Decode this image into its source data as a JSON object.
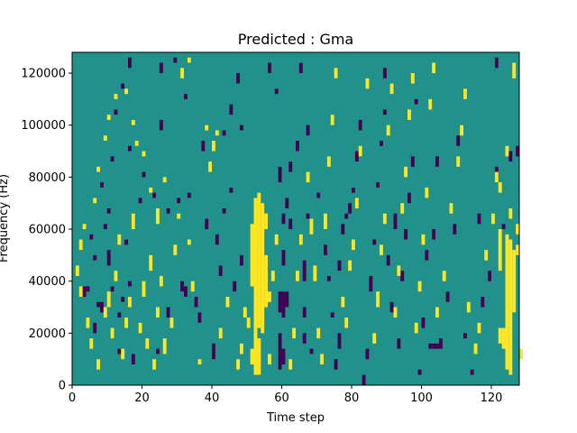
{
  "colors": {
    "background": "#21918c",
    "high": "#fde725",
    "low": "#440154"
  },
  "chart_data": {
    "type": "heatmap",
    "title": "Predicted : Gma",
    "xlabel": "Time step",
    "ylabel": "Frequency (Hz)",
    "xlim": [
      0,
      128
    ],
    "ylim": [
      0,
      128000
    ],
    "x_ticks": [
      0,
      20,
      40,
      60,
      80,
      100,
      120
    ],
    "y_ticks": [
      0,
      20000,
      40000,
      60000,
      80000,
      100000,
      120000
    ],
    "y_tick_labels": [
      "0",
      "20000",
      "40000",
      "60000",
      "80000",
      "100000",
      "120000"
    ],
    "bin_hz": 2000,
    "cells": [
      [
        53,
        4000,
        18000,
        1
      ],
      [
        51,
        8000,
        14000,
        1
      ],
      [
        52,
        4000,
        72000,
        1
      ],
      [
        53,
        22000,
        74000,
        1
      ],
      [
        54,
        20000,
        70000,
        1
      ],
      [
        55,
        30000,
        50000,
        1
      ],
      [
        50,
        22000,
        26000,
        1
      ],
      [
        51,
        38000,
        62000,
        1
      ],
      [
        56,
        8000,
        12000,
        1
      ],
      [
        55,
        60000,
        66000,
        1
      ],
      [
        124,
        6000,
        58000,
        1
      ],
      [
        125,
        4000,
        56000,
        1
      ],
      [
        126,
        28000,
        52000,
        1
      ],
      [
        123,
        14000,
        22000,
        1
      ],
      [
        122,
        44000,
        60000,
        1
      ],
      [
        122,
        16000,
        22000,
        1
      ],
      [
        126,
        118000,
        124000,
        1
      ],
      [
        124,
        88000,
        92000,
        1
      ],
      [
        127,
        58000,
        62000,
        1
      ],
      [
        60,
        62000,
        66000,
        0
      ],
      [
        60,
        46000,
        52000,
        0
      ],
      [
        59,
        28000,
        36000,
        0
      ],
      [
        60,
        26000,
        36000,
        0
      ],
      [
        61,
        30000,
        36000,
        0
      ],
      [
        59,
        6000,
        20000,
        0
      ],
      [
        60,
        8000,
        14000,
        0
      ],
      [
        59,
        78000,
        84000,
        0
      ],
      [
        61,
        68000,
        72000,
        0
      ],
      [
        62,
        60000,
        64000,
        0
      ],
      [
        66,
        26000,
        30000,
        0
      ],
      [
        66,
        16000,
        20000,
        0
      ],
      [
        66,
        40000,
        48000,
        0
      ],
      [
        67,
        64000,
        66000,
        0
      ],
      [
        68,
        12000,
        14000,
        0
      ],
      [
        35,
        30000,
        34000,
        0
      ],
      [
        36,
        24000,
        28000,
        0
      ],
      [
        40,
        10000,
        16000,
        0
      ],
      [
        41,
        54000,
        58000,
        0
      ],
      [
        43,
        66000,
        68000,
        0
      ],
      [
        45,
        74000,
        76000,
        0
      ],
      [
        43,
        96000,
        98000,
        0
      ],
      [
        45,
        104000,
        108000,
        0
      ],
      [
        48,
        98000,
        100000,
        0
      ],
      [
        32,
        34000,
        38000,
        0
      ],
      [
        33,
        72000,
        74000,
        0
      ],
      [
        7,
        30000,
        32000,
        0
      ],
      [
        6,
        48000,
        50000,
        0
      ],
      [
        11,
        36000,
        38000,
        0
      ],
      [
        10,
        46000,
        52000,
        0
      ],
      [
        13,
        26000,
        28000,
        0
      ],
      [
        9,
        60000,
        62000,
        0
      ],
      [
        8,
        76000,
        78000,
        0
      ],
      [
        5,
        56000,
        58000,
        0
      ],
      [
        3,
        34000,
        38000,
        0
      ],
      [
        4,
        36000,
        38000,
        0
      ],
      [
        6,
        20000,
        24000,
        0
      ],
      [
        8,
        28000,
        32000,
        0
      ],
      [
        12,
        104000,
        106000,
        0
      ],
      [
        16,
        90000,
        92000,
        0
      ],
      [
        14,
        114000,
        116000,
        0
      ],
      [
        16,
        122000,
        126000,
        0
      ],
      [
        20,
        80000,
        82000,
        0
      ],
      [
        23,
        72000,
        74000,
        0
      ],
      [
        25,
        98000,
        102000,
        0
      ],
      [
        27,
        26000,
        30000,
        0
      ],
      [
        27,
        66000,
        68000,
        0
      ],
      [
        30,
        70000,
        72000,
        0
      ],
      [
        31,
        36000,
        40000,
        0
      ],
      [
        24,
        12000,
        14000,
        0
      ],
      [
        19,
        70000,
        72000,
        0
      ],
      [
        17,
        8000,
        12000,
        0
      ],
      [
        16,
        38000,
        40000,
        0
      ],
      [
        15,
        54000,
        56000,
        0
      ],
      [
        13,
        12000,
        14000,
        0
      ],
      [
        14,
        32000,
        34000,
        0
      ],
      [
        11,
        86000,
        88000,
        0
      ],
      [
        10,
        66000,
        68000,
        0
      ],
      [
        25,
        120000,
        124000,
        0
      ],
      [
        29,
        124000,
        126000,
        0
      ],
      [
        32,
        110000,
        112000,
        0
      ],
      [
        37,
        90000,
        94000,
        0
      ],
      [
        38,
        60000,
        64000,
        0
      ],
      [
        42,
        42000,
        46000,
        0
      ],
      [
        46,
        36000,
        40000,
        0
      ],
      [
        48,
        46000,
        50000,
        0
      ],
      [
        47,
        116000,
        120000,
        0
      ],
      [
        56,
        120000,
        124000,
        0
      ],
      [
        58,
        112000,
        114000,
        0
      ],
      [
        62,
        82000,
        86000,
        0
      ],
      [
        64,
        90000,
        94000,
        0
      ],
      [
        65,
        120000,
        124000,
        0
      ],
      [
        67,
        96000,
        100000,
        0
      ],
      [
        70,
        72000,
        74000,
        0
      ],
      [
        72,
        50000,
        54000,
        0
      ],
      [
        73,
        40000,
        42000,
        0
      ],
      [
        74,
        26000,
        28000,
        0
      ],
      [
        75,
        6000,
        10000,
        0
      ],
      [
        76,
        14000,
        20000,
        0
      ],
      [
        76,
        44000,
        48000,
        0
      ],
      [
        77,
        58000,
        62000,
        0
      ],
      [
        78,
        64000,
        66000,
        0
      ],
      [
        79,
        66000,
        70000,
        0
      ],
      [
        80,
        74000,
        76000,
        0
      ],
      [
        81,
        86000,
        90000,
        0
      ],
      [
        82,
        98000,
        102000,
        0
      ],
      [
        83,
        0,
        4000,
        0
      ],
      [
        84,
        10000,
        14000,
        0
      ],
      [
        85,
        36000,
        42000,
        0
      ],
      [
        86,
        54000,
        56000,
        0
      ],
      [
        87,
        76000,
        78000,
        0
      ],
      [
        88,
        92000,
        94000,
        0
      ],
      [
        89,
        104000,
        106000,
        0
      ],
      [
        89,
        118000,
        122000,
        0
      ],
      [
        90,
        46000,
        50000,
        0
      ],
      [
        91,
        28000,
        32000,
        0
      ],
      [
        92,
        60000,
        66000,
        0
      ],
      [
        93,
        14000,
        18000,
        0
      ],
      [
        94,
        40000,
        44000,
        0
      ],
      [
        95,
        56000,
        60000,
        0
      ],
      [
        96,
        70000,
        74000,
        0
      ],
      [
        97,
        84000,
        88000,
        0
      ],
      [
        98,
        108000,
        110000,
        0
      ],
      [
        99,
        4000,
        6000,
        0
      ],
      [
        100,
        22000,
        26000,
        0
      ],
      [
        101,
        48000,
        52000,
        0
      ],
      [
        103,
        56000,
        60000,
        0
      ],
      [
        104,
        84000,
        88000,
        0
      ],
      [
        105,
        14000,
        18000,
        0
      ],
      [
        107,
        32000,
        36000,
        0
      ],
      [
        109,
        58000,
        62000,
        0
      ],
      [
        110,
        92000,
        96000,
        0
      ],
      [
        112,
        18000,
        20000,
        0
      ],
      [
        114,
        4000,
        6000,
        0
      ],
      [
        116,
        62000,
        66000,
        0
      ],
      [
        117,
        30000,
        34000,
        0
      ],
      [
        119,
        40000,
        44000,
        0
      ],
      [
        121,
        80000,
        84000,
        0
      ],
      [
        123,
        60000,
        62000,
        0
      ],
      [
        125,
        86000,
        90000,
        0
      ],
      [
        127,
        88000,
        92000,
        0
      ],
      [
        121,
        122000,
        126000,
        0
      ],
      [
        102,
        14000,
        16000,
        0
      ],
      [
        103,
        14000,
        16000,
        0
      ],
      [
        104,
        14000,
        16000,
        0
      ],
      [
        105,
        14000,
        16000,
        0
      ],
      [
        40,
        90000,
        94000,
        1
      ],
      [
        41,
        96000,
        98000,
        1
      ],
      [
        39,
        82000,
        86000,
        1
      ],
      [
        38,
        98000,
        100000,
        1
      ],
      [
        36,
        8000,
        10000,
        1
      ],
      [
        34,
        36000,
        40000,
        1
      ],
      [
        33,
        54000,
        56000,
        1
      ],
      [
        30,
        64000,
        66000,
        1
      ],
      [
        26,
        78000,
        80000,
        1
      ],
      [
        24,
        62000,
        68000,
        1
      ],
      [
        22,
        74000,
        76000,
        1
      ],
      [
        20,
        88000,
        90000,
        1
      ],
      [
        18,
        92000,
        94000,
        1
      ],
      [
        17,
        100000,
        102000,
        1
      ],
      [
        15,
        112000,
        114000,
        1
      ],
      [
        12,
        110000,
        112000,
        1
      ],
      [
        10,
        102000,
        104000,
        1
      ],
      [
        9,
        94000,
        96000,
        1
      ],
      [
        7,
        82000,
        84000,
        1
      ],
      [
        6,
        70000,
        72000,
        1
      ],
      [
        3,
        60000,
        62000,
        1
      ],
      [
        2,
        52000,
        56000,
        1
      ],
      [
        1,
        42000,
        46000,
        1
      ],
      [
        2,
        34000,
        38000,
        1
      ],
      [
        4,
        22000,
        26000,
        1
      ],
      [
        5,
        14000,
        18000,
        1
      ],
      [
        7,
        6000,
        10000,
        1
      ],
      [
        9,
        26000,
        30000,
        1
      ],
      [
        10,
        30000,
        36000,
        1
      ],
      [
        11,
        18000,
        22000,
        1
      ],
      [
        12,
        40000,
        44000,
        1
      ],
      [
        13,
        54000,
        58000,
        1
      ],
      [
        14,
        10000,
        14000,
        1
      ],
      [
        15,
        22000,
        26000,
        1
      ],
      [
        16,
        30000,
        34000,
        1
      ],
      [
        17,
        60000,
        66000,
        1
      ],
      [
        19,
        20000,
        24000,
        1
      ],
      [
        20,
        34000,
        40000,
        1
      ],
      [
        21,
        14000,
        18000,
        1
      ],
      [
        22,
        44000,
        50000,
        1
      ],
      [
        23,
        6000,
        10000,
        1
      ],
      [
        24,
        26000,
        30000,
        1
      ],
      [
        25,
        38000,
        42000,
        1
      ],
      [
        26,
        12000,
        18000,
        1
      ],
      [
        28,
        22000,
        26000,
        1
      ],
      [
        29,
        50000,
        54000,
        1
      ],
      [
        31,
        118000,
        122000,
        1
      ],
      [
        33,
        124000,
        126000,
        1
      ],
      [
        42,
        18000,
        22000,
        1
      ],
      [
        44,
        30000,
        34000,
        1
      ],
      [
        47,
        6000,
        10000,
        1
      ],
      [
        48,
        12000,
        16000,
        1
      ],
      [
        49,
        26000,
        30000,
        1
      ],
      [
        56,
        32000,
        36000,
        1
      ],
      [
        57,
        40000,
        44000,
        1
      ],
      [
        58,
        54000,
        58000,
        1
      ],
      [
        62,
        6000,
        10000,
        1
      ],
      [
        63,
        18000,
        22000,
        1
      ],
      [
        64,
        40000,
        44000,
        1
      ],
      [
        65,
        54000,
        58000,
        1
      ],
      [
        67,
        78000,
        82000,
        1
      ],
      [
        68,
        58000,
        64000,
        1
      ],
      [
        69,
        40000,
        46000,
        1
      ],
      [
        70,
        18000,
        22000,
        1
      ],
      [
        71,
        8000,
        12000,
        1
      ],
      [
        72,
        60000,
        66000,
        1
      ],
      [
        73,
        84000,
        88000,
        1
      ],
      [
        74,
        100000,
        104000,
        1
      ],
      [
        75,
        118000,
        122000,
        1
      ],
      [
        77,
        30000,
        34000,
        1
      ],
      [
        78,
        22000,
        26000,
        1
      ],
      [
        79,
        44000,
        48000,
        1
      ],
      [
        80,
        52000,
        56000,
        1
      ],
      [
        81,
        68000,
        72000,
        1
      ],
      [
        82,
        88000,
        92000,
        1
      ],
      [
        84,
        114000,
        118000,
        1
      ],
      [
        86,
        16000,
        20000,
        1
      ],
      [
        87,
        30000,
        36000,
        1
      ],
      [
        88,
        50000,
        54000,
        1
      ],
      [
        89,
        62000,
        66000,
        1
      ],
      [
        90,
        96000,
        100000,
        1
      ],
      [
        91,
        112000,
        116000,
        1
      ],
      [
        92,
        26000,
        30000,
        1
      ],
      [
        93,
        42000,
        46000,
        1
      ],
      [
        94,
        66000,
        70000,
        1
      ],
      [
        95,
        80000,
        84000,
        1
      ],
      [
        96,
        102000,
        106000,
        1
      ],
      [
        97,
        116000,
        120000,
        1
      ],
      [
        98,
        20000,
        24000,
        1
      ],
      [
        99,
        36000,
        40000,
        1
      ],
      [
        100,
        54000,
        58000,
        1
      ],
      [
        101,
        72000,
        76000,
        1
      ],
      [
        102,
        106000,
        110000,
        1
      ],
      [
        103,
        120000,
        124000,
        1
      ],
      [
        104,
        26000,
        30000,
        1
      ],
      [
        106,
        40000,
        44000,
        1
      ],
      [
        108,
        66000,
        70000,
        1
      ],
      [
        110,
        84000,
        88000,
        1
      ],
      [
        111,
        96000,
        100000,
        1
      ],
      [
        112,
        110000,
        114000,
        1
      ],
      [
        113,
        28000,
        32000,
        1
      ],
      [
        115,
        12000,
        16000,
        1
      ],
      [
        116,
        20000,
        24000,
        1
      ],
      [
        118,
        48000,
        52000,
        1
      ],
      [
        120,
        62000,
        66000,
        1
      ],
      [
        121,
        78000,
        82000,
        1
      ],
      [
        122,
        74000,
        78000,
        1
      ],
      [
        125,
        64000,
        68000,
        1
      ],
      [
        127,
        50000,
        54000,
        1
      ],
      [
        128,
        10000,
        14000,
        1
      ]
    ]
  }
}
